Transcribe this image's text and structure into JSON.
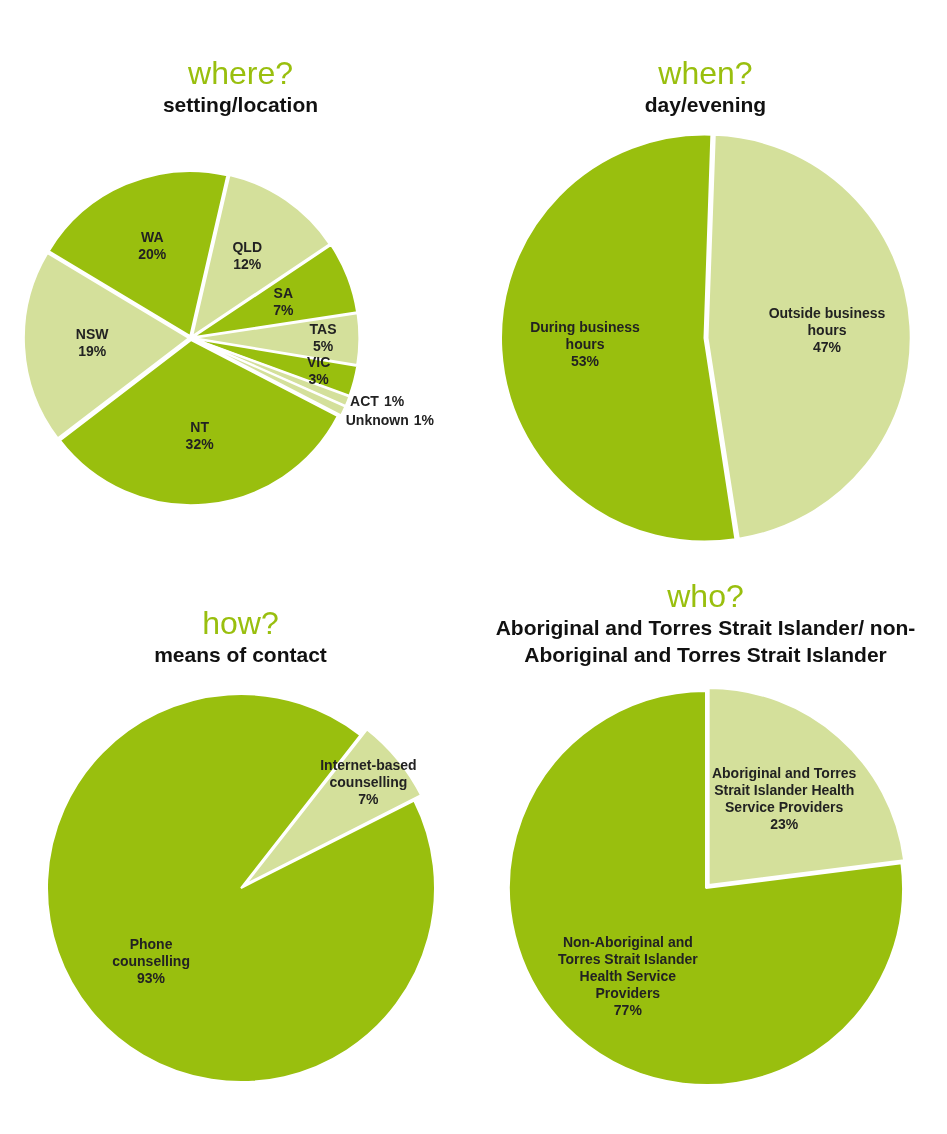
{
  "chart_data": [
    {
      "type": "pie",
      "title": "where?",
      "subtitle": "setting/location",
      "categories": [
        "QLD",
        "SA",
        "TAS",
        "VIC",
        "ACT",
        "Unknown",
        "NT",
        "NSW",
        "WA"
      ],
      "values": [
        12,
        7,
        5,
        3,
        1,
        1,
        32,
        19,
        20
      ],
      "value_labels": [
        "12%",
        "7%",
        "5%",
        "3%",
        "1%",
        "1%",
        "32%",
        "19%",
        "20%"
      ],
      "colors": [
        "#d4e09b",
        "#99bf0e",
        "#d4e09b",
        "#99bf0e",
        "#d4e09b",
        "#d4e09b",
        "#99bf0e",
        "#d4e09b",
        "#99bf0e"
      ]
    },
    {
      "type": "pie",
      "title": "when?",
      "subtitle": "day/evening",
      "categories": [
        "Outside business hours",
        "During business hours"
      ],
      "values": [
        47,
        53
      ],
      "value_labels": [
        "47%",
        "53%"
      ],
      "colors": [
        "#d4e09b",
        "#99bf0e"
      ]
    },
    {
      "type": "pie",
      "title": "how?",
      "subtitle": "means of contact",
      "categories": [
        "Internet-based counselling",
        "Phone counselling"
      ],
      "values": [
        7,
        93
      ],
      "value_labels": [
        "7%",
        "93%"
      ],
      "colors": [
        "#d4e09b",
        "#99bf0e"
      ]
    },
    {
      "type": "pie",
      "title": "who?",
      "subtitle": "Aboriginal and Torres Strait Islander/ non-Aboriginal and Torres Strait Islander",
      "categories": [
        "Aboriginal and Torres Strait Islander Health Service Providers",
        "Non-Aboriginal and Torres Strait Islander Health Service Providers"
      ],
      "values": [
        23,
        77
      ],
      "value_labels": [
        "23%",
        "77%"
      ],
      "colors": [
        "#d4e09b",
        "#99bf0e"
      ]
    }
  ]
}
